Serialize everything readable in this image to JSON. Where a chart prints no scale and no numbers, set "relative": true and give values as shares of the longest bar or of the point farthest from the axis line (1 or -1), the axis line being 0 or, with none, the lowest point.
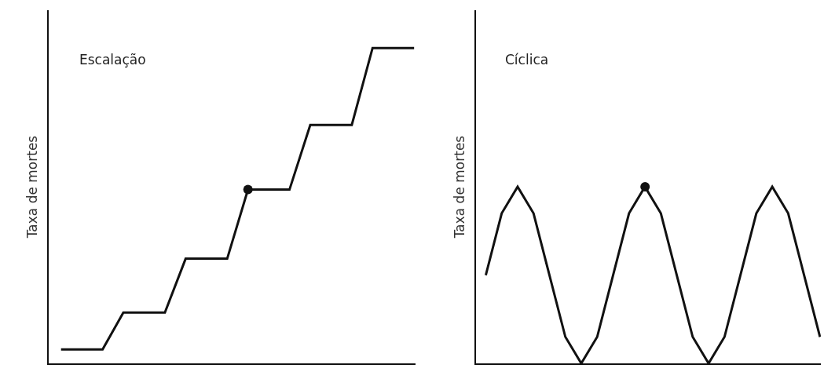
{
  "chart_data": [
    {
      "type": "line",
      "title": "Escalação",
      "ylabel": "Taxa de mortes",
      "relative": true,
      "categories": [
        null,
        null,
        null,
        null,
        null,
        null,
        null,
        null,
        null,
        null,
        null,
        null,
        null,
        null,
        null,
        null,
        null,
        null
      ],
      "line_style": "solid",
      "series": [
        {
          "color": "#111111",
          "values": [
            0.044,
            0.044,
            0.044,
            0.161,
            0.161,
            0.161,
            0.332,
            0.332,
            0.332,
            0.551,
            0.551,
            0.551,
            0.756,
            0.756,
            0.756,
            1,
            1,
            1
          ]
        }
      ]
    },
    {
      "type": "line",
      "title": "Cíclica",
      "ylabel": "Taxa de mortes",
      "relative": true,
      "categories": [
        null,
        null,
        null,
        null,
        null,
        null,
        null,
        null,
        null,
        null,
        null,
        null,
        null,
        null,
        null,
        null,
        null,
        null,
        null,
        null,
        null,
        null
      ],
      "line_style": "solid",
      "series": [
        {
          "color": "#111111",
          "values": [
            0.5,
            0.85,
            1,
            0.85,
            0.5,
            0.15,
            0,
            0.15,
            0.5,
            0.85,
            1,
            0.85,
            0.5,
            0.15,
            0,
            0.15,
            0.5,
            0.85,
            1,
            0.85,
            0.5,
            0.15
          ]
        }
      ]
    }
  ]
}
